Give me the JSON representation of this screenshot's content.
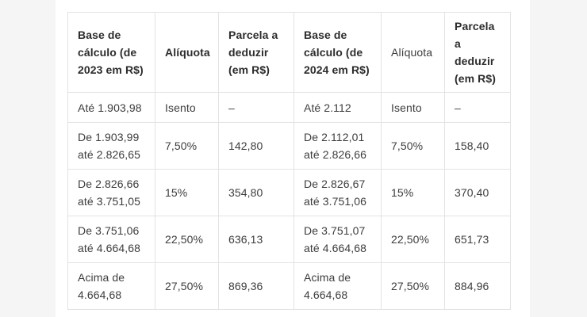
{
  "theme": {
    "page_background": "#f5f5f6",
    "surface_background": "#ffffff",
    "table_border": "#e3e3e5",
    "header_text": "#2c2c2e",
    "body_text": "#3d3d3f"
  },
  "table": {
    "columns": [
      {
        "label": "Base de cálculo (de 2023 em R$)"
      },
      {
        "label": "Alíquota"
      },
      {
        "label": "Parcela a deduzir (em R$)"
      },
      {
        "label": "Base de cálculo (de 2024 em R$)"
      },
      {
        "label": "Alíquota"
      },
      {
        "label": "Parcela a deduzir (em R$)"
      }
    ],
    "rows": [
      [
        "Até 1.903,98",
        "Isento",
        "–",
        "Até 2.112",
        "Isento",
        "–"
      ],
      [
        "De 1.903,99 até 2.826,65",
        "7,50%",
        "142,80",
        "De 2.112,01 até 2.826,66",
        "7,50%",
        "158,40"
      ],
      [
        "De 2.826,66 até 3.751,05",
        "15%",
        "354,80",
        "De 2.826,67 até 3.751,06",
        "15%",
        "370,40"
      ],
      [
        "De 3.751,06 até 4.664,68",
        "22,50%",
        "636,13",
        "De 3.751,07 até 4.664,68",
        "22,50%",
        "651,73"
      ],
      [
        "Acima de 4.664,68",
        "27,50%",
        "869,36",
        "Acima de 4.664,68",
        "27,50%",
        "884,96"
      ]
    ]
  }
}
